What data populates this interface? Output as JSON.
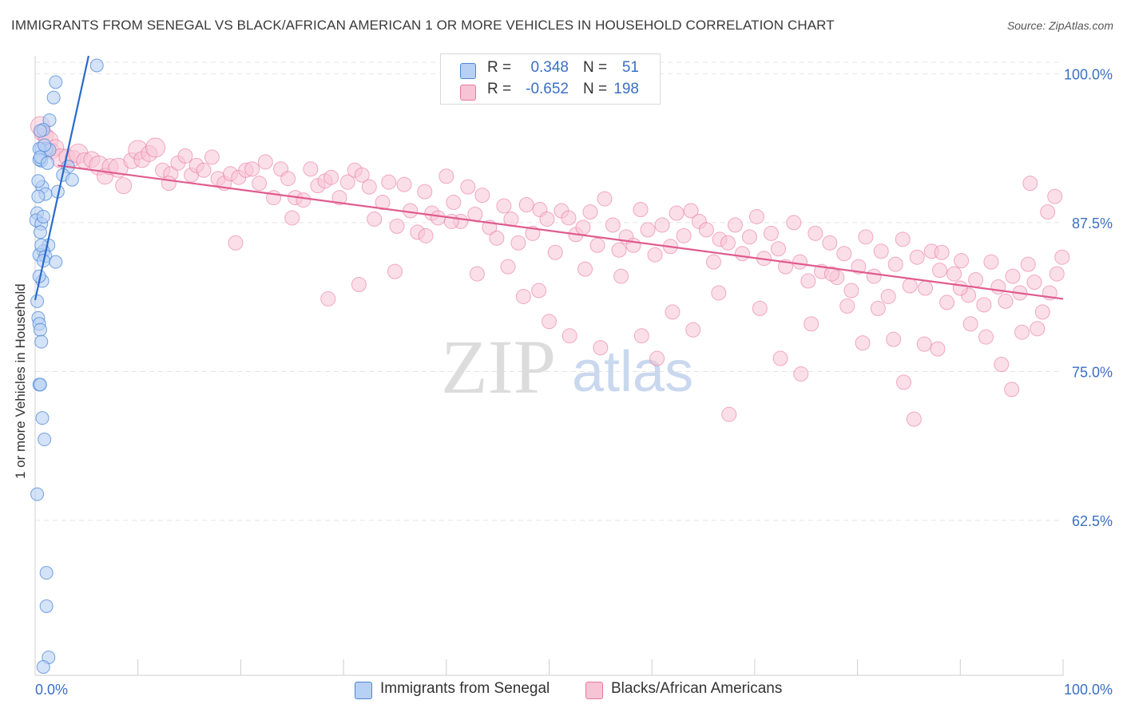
{
  "header": {
    "title": "IMMIGRANTS FROM SENEGAL VS BLACK/AFRICAN AMERICAN 1 OR MORE VEHICLES IN HOUSEHOLD CORRELATION CHART",
    "source": "Source: ZipAtlas.com"
  },
  "legend_top": {
    "rows": [
      {
        "r_label": "R =",
        "r_value": "0.348",
        "n_label": "N =",
        "n_value": "51"
      },
      {
        "r_label": "R =",
        "r_value": "-0.652",
        "n_label": "N =",
        "n_value": "198"
      }
    ]
  },
  "legend_bottom": {
    "items": [
      "Immigrants from Senegal",
      "Blacks/African Americans"
    ]
  },
  "watermark": {
    "zip": "ZIP",
    "atlas": "atlas"
  },
  "colors": {
    "blue": "#4a86d8",
    "blue_fill": "#b7d0f3",
    "blue_line": "#2b6acb",
    "pink": "#e8779f",
    "pink_fill": "#f7c4d5",
    "pink_line": "#e05b8d",
    "axis_text": "#3b6fc4"
  },
  "chart_data": {
    "type": "scatter",
    "title": "IMMIGRANTS FROM SENEGAL VS BLACK/AFRICAN AMERICAN 1 OR MORE VEHICLES IN HOUSEHOLD CORRELATION CHART",
    "xlabel": "",
    "ylabel": "1 or more Vehicles in Household",
    "xlim": [
      0,
      100
    ],
    "ylim": [
      49.5,
      101.5
    ],
    "x_tick_labels": [
      "0.0%",
      "100.0%"
    ],
    "y_ticks": [
      62.5,
      75.0,
      87.5,
      100.0
    ],
    "y_tick_labels": [
      "62.5%",
      "75.0%",
      "87.5%",
      "100.0%"
    ],
    "grid": true,
    "legend_position": "top-center",
    "series": [
      {
        "name": "Immigrants from Senegal",
        "trend": {
          "x": [
            0.0,
            5.2
          ],
          "y": [
            81.0,
            101.5
          ]
        },
        "points": [
          [
            6.0,
            100.7
          ],
          [
            2.0,
            99.3
          ],
          [
            1.8,
            98.0
          ],
          [
            1.4,
            96.1
          ],
          [
            0.8,
            95.3
          ],
          [
            0.5,
            95.2
          ],
          [
            0.6,
            93.7
          ],
          [
            1.1,
            93.7
          ],
          [
            1.4,
            93.6
          ],
          [
            0.4,
            93.7
          ],
          [
            0.6,
            92.7
          ],
          [
            0.4,
            92.8
          ],
          [
            3.2,
            92.2
          ],
          [
            2.7,
            91.5
          ],
          [
            3.6,
            91.1
          ],
          [
            0.7,
            90.5
          ],
          [
            2.2,
            90.1
          ],
          [
            1.0,
            89.9
          ],
          [
            0.3,
            89.7
          ],
          [
            0.2,
            88.3
          ],
          [
            0.1,
            87.7
          ],
          [
            0.6,
            87.4
          ],
          [
            0.5,
            86.7
          ],
          [
            1.3,
            85.6
          ],
          [
            0.8,
            85.1
          ],
          [
            0.4,
            84.8
          ],
          [
            1.0,
            84.7
          ],
          [
            2.0,
            84.2
          ],
          [
            0.8,
            84.3
          ],
          [
            0.7,
            82.6
          ],
          [
            0.2,
            80.9
          ],
          [
            0.3,
            79.5
          ],
          [
            0.4,
            79.0
          ],
          [
            0.5,
            78.5
          ],
          [
            0.6,
            77.5
          ],
          [
            0.4,
            73.9
          ],
          [
            0.5,
            73.9
          ],
          [
            0.7,
            71.1
          ],
          [
            0.9,
            69.3
          ],
          [
            0.2,
            64.7
          ],
          [
            1.1,
            58.1
          ],
          [
            1.1,
            55.3
          ],
          [
            1.3,
            51.0
          ],
          [
            0.8,
            50.2
          ],
          [
            0.5,
            93.0
          ],
          [
            0.9,
            94.0
          ],
          [
            1.2,
            92.5
          ],
          [
            0.3,
            91.0
          ],
          [
            0.8,
            88.0
          ],
          [
            0.6,
            85.6
          ],
          [
            0.4,
            83.0
          ]
        ]
      },
      {
        "name": "Blacks/African Americans",
        "trend": {
          "x": [
            2.2,
            100.0
          ],
          "y": [
            92.3,
            81.1
          ]
        },
        "points": [
          [
            0.5,
            95.6
          ],
          [
            0.7,
            95.0
          ],
          [
            1.0,
            94.8
          ],
          [
            1.3,
            94.4
          ],
          [
            1.6,
            93.5
          ],
          [
            2.0,
            93.8
          ],
          [
            2.5,
            92.9
          ],
          [
            3.1,
            93.0
          ],
          [
            3.7,
            92.9
          ],
          [
            4.2,
            93.3
          ],
          [
            4.8,
            92.7
          ],
          [
            5.5,
            92.8
          ],
          [
            6.2,
            92.3
          ],
          [
            6.8,
            91.4
          ],
          [
            7.3,
            92.2
          ],
          [
            8.1,
            92.1
          ],
          [
            8.6,
            90.6
          ],
          [
            9.4,
            92.7
          ],
          [
            10.0,
            93.6
          ],
          [
            10.4,
            92.8
          ],
          [
            11.1,
            93.3
          ],
          [
            11.7,
            93.8
          ],
          [
            12.4,
            91.9
          ],
          [
            13.2,
            91.6
          ],
          [
            13.9,
            92.5
          ],
          [
            14.6,
            93.1
          ],
          [
            15.2,
            91.5
          ],
          [
            15.7,
            92.3
          ],
          [
            16.4,
            91.9
          ],
          [
            17.2,
            93.0
          ],
          [
            17.8,
            91.2
          ],
          [
            18.4,
            90.8
          ],
          [
            19.0,
            91.6
          ],
          [
            19.8,
            91.3
          ],
          [
            20.5,
            91.9
          ],
          [
            21.1,
            92.0
          ],
          [
            21.8,
            90.8
          ],
          [
            22.4,
            92.6
          ],
          [
            23.2,
            89.6
          ],
          [
            23.9,
            92.0
          ],
          [
            24.6,
            91.2
          ],
          [
            25.3,
            89.6
          ],
          [
            26.1,
            89.4
          ],
          [
            26.8,
            92.0
          ],
          [
            27.5,
            90.6
          ],
          [
            28.2,
            91.0
          ],
          [
            28.8,
            91.3
          ],
          [
            29.6,
            89.6
          ],
          [
            30.4,
            90.9
          ],
          [
            31.1,
            91.9
          ],
          [
            31.8,
            91.5
          ],
          [
            32.5,
            90.5
          ],
          [
            33.0,
            87.8
          ],
          [
            33.8,
            89.2
          ],
          [
            34.4,
            90.9
          ],
          [
            35.2,
            87.2
          ],
          [
            35.9,
            90.7
          ],
          [
            36.5,
            88.5
          ],
          [
            37.2,
            86.7
          ],
          [
            37.9,
            90.1
          ],
          [
            38.6,
            88.3
          ],
          [
            39.2,
            87.9
          ],
          [
            40.0,
            91.4
          ],
          [
            40.7,
            89.2
          ],
          [
            41.4,
            87.6
          ],
          [
            42.1,
            90.5
          ],
          [
            42.8,
            88.2
          ],
          [
            43.5,
            89.8
          ],
          [
            44.2,
            87.1
          ],
          [
            44.9,
            86.2
          ],
          [
            45.6,
            88.9
          ],
          [
            46.3,
            87.8
          ],
          [
            47.0,
            85.8
          ],
          [
            47.8,
            89.0
          ],
          [
            48.4,
            86.6
          ],
          [
            49.1,
            88.6
          ],
          [
            49.8,
            87.8
          ],
          [
            50.6,
            85.0
          ],
          [
            51.2,
            88.5
          ],
          [
            51.9,
            87.9
          ],
          [
            52.6,
            86.5
          ],
          [
            53.3,
            87.1
          ],
          [
            54.0,
            88.4
          ],
          [
            54.7,
            85.6
          ],
          [
            55.4,
            89.5
          ],
          [
            56.2,
            87.3
          ],
          [
            56.8,
            85.2
          ],
          [
            57.5,
            86.3
          ],
          [
            58.2,
            85.6
          ],
          [
            58.9,
            88.6
          ],
          [
            59.6,
            86.9
          ],
          [
            60.3,
            84.8
          ],
          [
            61.0,
            87.3
          ],
          [
            61.8,
            85.5
          ],
          [
            62.4,
            88.3
          ],
          [
            63.1,
            86.4
          ],
          [
            63.8,
            88.5
          ],
          [
            64.6,
            87.6
          ],
          [
            65.3,
            86.9
          ],
          [
            66.0,
            84.2
          ],
          [
            66.6,
            86.1
          ],
          [
            67.4,
            85.8
          ],
          [
            68.1,
            87.3
          ],
          [
            68.8,
            84.9
          ],
          [
            69.5,
            86.3
          ],
          [
            70.2,
            88.0
          ],
          [
            70.9,
            84.5
          ],
          [
            71.6,
            86.6
          ],
          [
            72.3,
            85.3
          ],
          [
            73.0,
            83.8
          ],
          [
            73.8,
            87.5
          ],
          [
            74.4,
            84.2
          ],
          [
            75.2,
            82.6
          ],
          [
            75.9,
            86.6
          ],
          [
            76.5,
            83.4
          ],
          [
            77.3,
            85.8
          ],
          [
            78.0,
            82.9
          ],
          [
            78.7,
            84.9
          ],
          [
            79.4,
            81.8
          ],
          [
            80.1,
            83.8
          ],
          [
            80.8,
            86.3
          ],
          [
            81.6,
            83.0
          ],
          [
            82.3,
            85.1
          ],
          [
            83.0,
            81.3
          ],
          [
            83.7,
            84.0
          ],
          [
            84.4,
            86.1
          ],
          [
            85.1,
            82.2
          ],
          [
            85.8,
            84.6
          ],
          [
            86.6,
            82.0
          ],
          [
            87.2,
            85.1
          ],
          [
            88.0,
            83.5
          ],
          [
            88.7,
            80.8
          ],
          [
            89.4,
            83.2
          ],
          [
            90.1,
            84.3
          ],
          [
            90.8,
            81.4
          ],
          [
            91.5,
            82.7
          ],
          [
            92.3,
            80.6
          ],
          [
            93.0,
            84.2
          ],
          [
            93.7,
            82.1
          ],
          [
            94.4,
            80.9
          ],
          [
            95.1,
            83.0
          ],
          [
            95.8,
            81.6
          ],
          [
            96.6,
            84.0
          ],
          [
            97.2,
            82.5
          ],
          [
            98.0,
            80.0
          ],
          [
            98.7,
            81.6
          ],
          [
            99.4,
            83.2
          ],
          [
            99.9,
            84.6
          ],
          [
            13.0,
            90.8
          ],
          [
            19.5,
            85.8
          ],
          [
            25.0,
            87.9
          ],
          [
            28.5,
            81.1
          ],
          [
            31.5,
            82.3
          ],
          [
            35.0,
            83.4
          ],
          [
            38.0,
            86.4
          ],
          [
            40.5,
            87.6
          ],
          [
            43.0,
            83.2
          ],
          [
            46.0,
            83.8
          ],
          [
            47.5,
            81.3
          ],
          [
            49.0,
            81.8
          ],
          [
            50.0,
            79.2
          ],
          [
            52.0,
            78.0
          ],
          [
            53.5,
            83.6
          ],
          [
            55.0,
            77.0
          ],
          [
            57.0,
            83.0
          ],
          [
            59.0,
            78.0
          ],
          [
            60.5,
            76.1
          ],
          [
            62.0,
            80.0
          ],
          [
            64.0,
            78.5
          ],
          [
            66.5,
            81.6
          ],
          [
            67.5,
            71.4
          ],
          [
            70.5,
            80.3
          ],
          [
            72.5,
            76.1
          ],
          [
            74.5,
            74.8
          ],
          [
            75.5,
            79.0
          ],
          [
            77.5,
            83.2
          ],
          [
            79.0,
            80.5
          ],
          [
            80.5,
            77.4
          ],
          [
            82.0,
            80.3
          ],
          [
            83.5,
            77.7
          ],
          [
            84.5,
            74.1
          ],
          [
            85.5,
            71.0
          ],
          [
            86.5,
            77.3
          ],
          [
            87.8,
            76.9
          ],
          [
            90.0,
            82.0
          ],
          [
            92.5,
            77.9
          ],
          [
            94.0,
            75.6
          ],
          [
            95.0,
            73.5
          ],
          [
            96.0,
            78.3
          ],
          [
            97.5,
            78.6
          ],
          [
            91.0,
            79.0
          ],
          [
            88.2,
            85.0
          ],
          [
            96.8,
            90.8
          ],
          [
            98.5,
            88.4
          ],
          [
            99.2,
            89.7
          ]
        ]
      }
    ]
  }
}
